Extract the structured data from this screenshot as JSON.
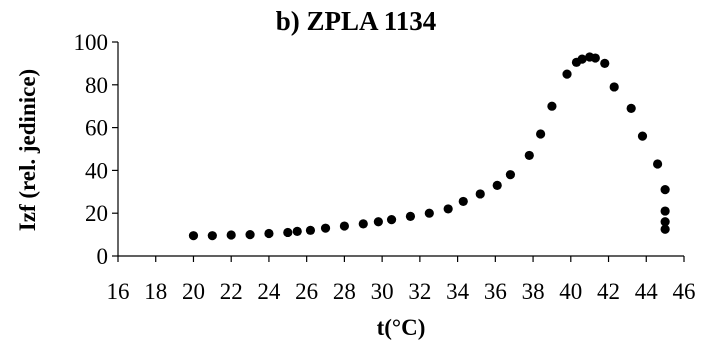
{
  "chart_data": {
    "type": "scatter",
    "title": "b) ZPLA 1134",
    "xlabel": "t(°C)",
    "ylabel": "Izf (rel. jedinice)",
    "xlim": [
      16,
      46
    ],
    "ylim": [
      0,
      100
    ],
    "x_ticks": [
      16,
      18,
      20,
      22,
      24,
      26,
      28,
      30,
      32,
      34,
      36,
      38,
      40,
      42,
      44,
      46
    ],
    "y_ticks": [
      0,
      20,
      40,
      60,
      80,
      100
    ],
    "grid": false,
    "series": [
      {
        "color": "#000000",
        "points": [
          [
            20.0,
            9.5
          ],
          [
            21.0,
            9.5
          ],
          [
            22.0,
            9.8
          ],
          [
            23.0,
            10.0
          ],
          [
            24.0,
            10.5
          ],
          [
            25.0,
            11.0
          ],
          [
            25.5,
            11.5
          ],
          [
            26.2,
            12.0
          ],
          [
            27.0,
            13.0
          ],
          [
            28.0,
            14.0
          ],
          [
            29.0,
            15.0
          ],
          [
            29.8,
            16.0
          ],
          [
            30.5,
            17.0
          ],
          [
            31.5,
            18.5
          ],
          [
            32.5,
            20.0
          ],
          [
            33.5,
            22.0
          ],
          [
            34.3,
            25.5
          ],
          [
            35.2,
            29.0
          ],
          [
            36.1,
            33.0
          ],
          [
            36.8,
            38.0
          ],
          [
            37.8,
            47.0
          ],
          [
            38.4,
            57.0
          ],
          [
            39.0,
            70.0
          ],
          [
            39.8,
            85.0
          ],
          [
            40.3,
            90.5
          ],
          [
            40.6,
            92.0
          ],
          [
            41.0,
            93.0
          ],
          [
            41.3,
            92.5
          ],
          [
            41.8,
            90.0
          ],
          [
            42.3,
            79.0
          ],
          [
            43.2,
            69.0
          ],
          [
            43.8,
            56.0
          ],
          [
            44.6,
            43.0
          ],
          [
            45.0,
            31.0
          ],
          [
            45.0,
            21.0
          ],
          [
            45.0,
            16.0
          ],
          [
            45.0,
            12.5
          ]
        ]
      }
    ]
  }
}
